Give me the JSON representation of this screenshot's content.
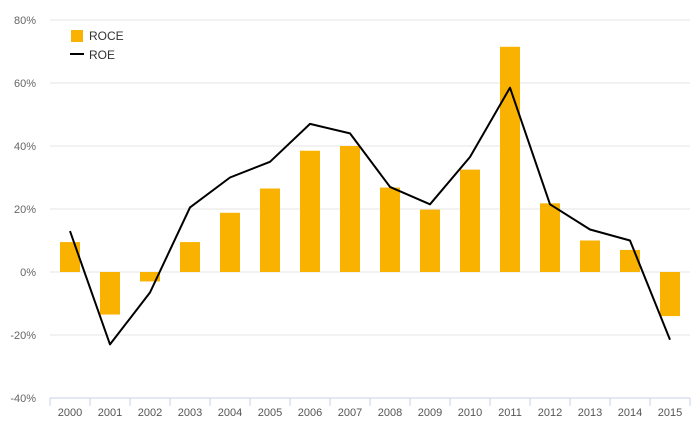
{
  "chart_data": {
    "type": "bar",
    "categories": [
      "2000",
      "2001",
      "2002",
      "2003",
      "2004",
      "2005",
      "2006",
      "2007",
      "2008",
      "2009",
      "2010",
      "2011",
      "2012",
      "2013",
      "2014",
      "2015"
    ],
    "series": [
      {
        "name": "ROCE",
        "type": "bar",
        "color": "#F9B200",
        "values": [
          9.5,
          -13.5,
          -3.0,
          9.5,
          18.8,
          26.5,
          38.5,
          40.0,
          26.8,
          19.8,
          32.5,
          71.5,
          21.8,
          10.0,
          7.0,
          -14.0
        ]
      },
      {
        "name": "ROE",
        "type": "line",
        "color": "#000000",
        "values": [
          13,
          -23,
          -6.5,
          20.5,
          30,
          35,
          47,
          44,
          27,
          21.5,
          36.5,
          58.5,
          21.5,
          13.5,
          10,
          -21.5
        ]
      }
    ],
    "ylim": [
      -40,
      80
    ],
    "yticks": [
      "-40%",
      "-20%",
      "0%",
      "20%",
      "40%",
      "60%",
      "80%"
    ],
    "ytick_values": [
      -40,
      -20,
      0,
      20,
      40,
      60,
      80
    ],
    "grid": true,
    "legend_position": "top-left",
    "title": "",
    "xlabel": "",
    "ylabel": ""
  }
}
